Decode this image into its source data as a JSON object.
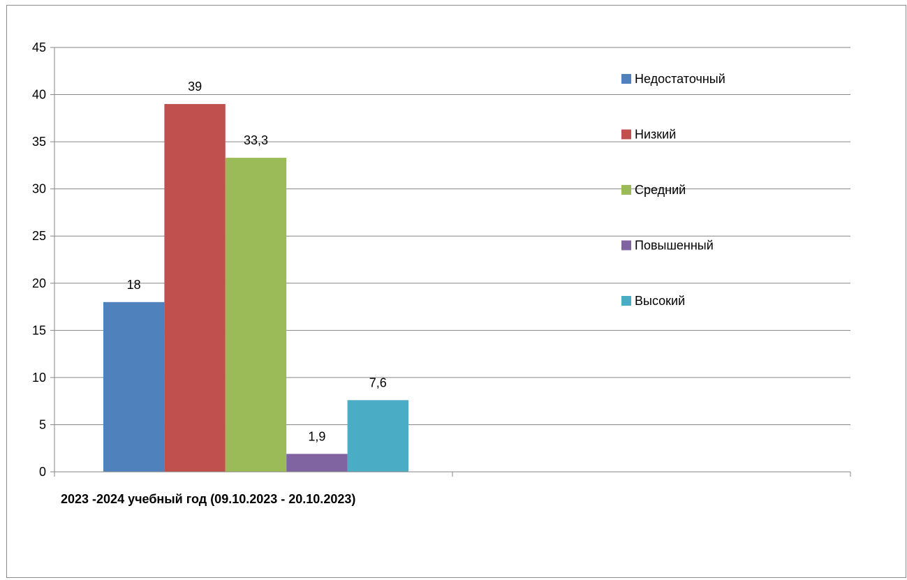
{
  "chart_data": {
    "type": "bar",
    "categories": [
      "2023 -2024 учебный год (09.10.2023 - 20.10.2023)"
    ],
    "series": [
      {
        "name": "Недостаточный",
        "values": [
          18
        ],
        "label": "18",
        "color": "#4f81bd"
      },
      {
        "name": "Низкий",
        "values": [
          39
        ],
        "label": "39",
        "color": "#c0504d"
      },
      {
        "name": "Средний",
        "values": [
          33.3
        ],
        "label": "33,3",
        "color": "#9bbb59"
      },
      {
        "name": "Повышенный",
        "values": [
          1.9
        ],
        "label": "1,9",
        "color": "#8064a2"
      },
      {
        "name": "Высокий",
        "values": [
          7.6
        ],
        "label": "7,6",
        "color": "#4bacc6"
      }
    ],
    "ylim": [
      0,
      45
    ],
    "yticks": [
      "0",
      "5",
      "10",
      "15",
      "20",
      "25",
      "30",
      "35",
      "40",
      "45"
    ],
    "grid": true,
    "legend": "right",
    "title": "",
    "xlabel": "",
    "ylabel": ""
  }
}
